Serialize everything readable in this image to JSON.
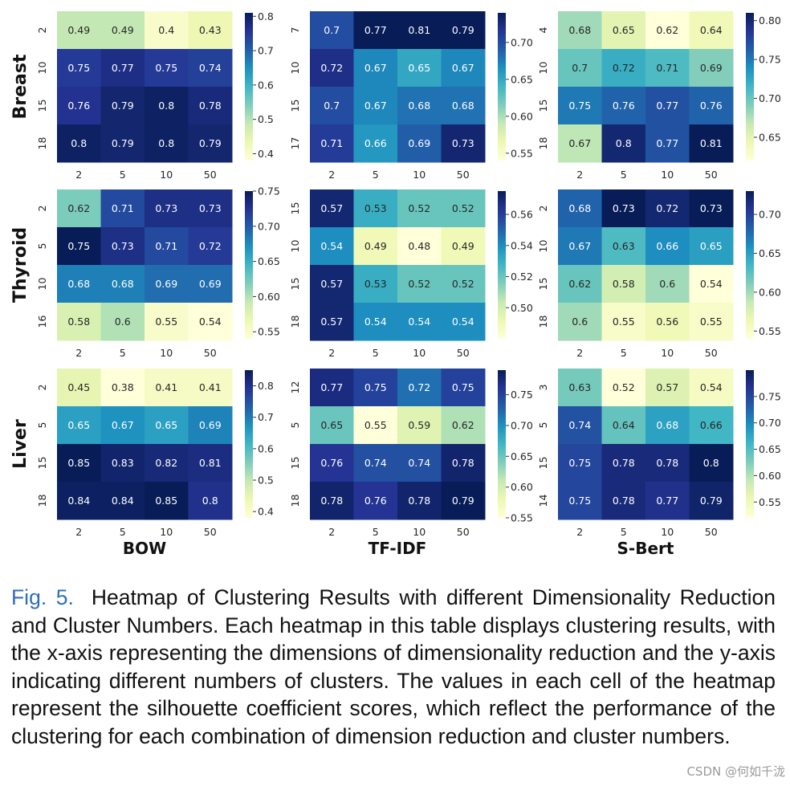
{
  "figure": {
    "row_labels": [
      "Breast",
      "Thyroid",
      "Liver"
    ],
    "column_labels": [
      "BOW",
      "TF-IDF",
      "S-Bert"
    ],
    "colormap": [
      "#ffffd9",
      "#edf8b1",
      "#c7e9b4",
      "#7fcdbb",
      "#41b6c4",
      "#1d91c0",
      "#225ea8",
      "#253494",
      "#081d58"
    ]
  },
  "caption": {
    "label": "Fig. 5.",
    "text": "Heatmap of Clustering Results with different Dimensionality Reduction and Cluster Numbers. Each heatmap in this table displays clustering results, with the x-axis representing the dimensions of dimensionality reduction and the y-axis indicating different numbers of clusters. The values in each cell of the heatmap represent the silhouette coefficient scores, which reflect the performance of the clustering for each combination of dimension reduction and cluster numbers."
  },
  "watermark": "CSDN @何如千泷",
  "chart_data": [
    {
      "type": "heatmap",
      "dataset": "Breast",
      "method": "BOW",
      "x": [
        "2",
        "5",
        "10",
        "50"
      ],
      "y": [
        "2",
        "10",
        "15",
        "18"
      ],
      "values": [
        [
          0.49,
          0.49,
          0.4,
          0.43
        ],
        [
          0.75,
          0.77,
          0.75,
          0.74
        ],
        [
          0.76,
          0.79,
          0.8,
          0.78
        ],
        [
          0.8,
          0.79,
          0.8,
          0.79
        ]
      ],
      "vmin": 0.38,
      "vmax": 0.81,
      "colorbar_ticks": [
        "0.8",
        "0.7",
        "0.6",
        "0.5",
        "0.4"
      ]
    },
    {
      "type": "heatmap",
      "dataset": "Breast",
      "method": "TF-IDF",
      "x": [
        "2",
        "5",
        "10",
        "50"
      ],
      "y": [
        "7",
        "10",
        "15",
        "17"
      ],
      "values": [
        [
          0.7,
          0.77,
          0.81,
          0.79
        ],
        [
          0.72,
          0.67,
          0.65,
          0.67
        ],
        [
          0.7,
          0.67,
          0.68,
          0.68
        ],
        [
          0.71,
          0.66,
          0.69,
          0.73
        ]
      ],
      "vmin": 0.54,
      "vmax": 0.74,
      "colorbar_ticks": [
        "0.70",
        "0.65",
        "0.60",
        "0.55"
      ]
    },
    {
      "type": "heatmap",
      "dataset": "Breast",
      "method": "S-Bert",
      "x": [
        "2",
        "5",
        "10",
        "50"
      ],
      "y": [
        "4",
        "10",
        "15",
        "18"
      ],
      "values": [
        [
          0.68,
          0.65,
          0.62,
          0.64
        ],
        [
          0.7,
          0.72,
          0.71,
          0.69
        ],
        [
          0.75,
          0.76,
          0.77,
          0.76
        ],
        [
          0.67,
          0.8,
          0.77,
          0.81
        ]
      ],
      "vmin": 0.62,
      "vmax": 0.81,
      "colorbar_ticks": [
        "0.80",
        "0.75",
        "0.70",
        "0.65"
      ]
    },
    {
      "type": "heatmap",
      "dataset": "Thyroid",
      "method": "BOW",
      "x": [
        "2",
        "5",
        "10",
        "50"
      ],
      "y": [
        "2",
        "5",
        "10",
        "16"
      ],
      "values": [
        [
          0.62,
          0.71,
          0.73,
          0.73
        ],
        [
          0.75,
          0.73,
          0.71,
          0.72
        ],
        [
          0.68,
          0.68,
          0.69,
          0.69
        ],
        [
          0.58,
          0.6,
          0.55,
          0.54
        ]
      ],
      "vmin": 0.54,
      "vmax": 0.75,
      "colorbar_ticks": [
        "0.75",
        "0.70",
        "0.65",
        "0.60",
        "0.55"
      ]
    },
    {
      "type": "heatmap",
      "dataset": "Thyroid",
      "method": "TF-IDF",
      "x": [
        "2",
        "5",
        "10",
        "50"
      ],
      "y": [
        "15",
        "10",
        "15",
        "18"
      ],
      "values": [
        [
          0.57,
          0.53,
          0.52,
          0.52
        ],
        [
          0.54,
          0.49,
          0.48,
          0.49
        ],
        [
          0.57,
          0.53,
          0.52,
          0.52
        ],
        [
          0.57,
          0.54,
          0.54,
          0.54
        ]
      ],
      "vmin": 0.48,
      "vmax": 0.575,
      "colorbar_ticks": [
        "0.56",
        "0.54",
        "0.52",
        "0.50"
      ]
    },
    {
      "type": "heatmap",
      "dataset": "Thyroid",
      "method": "S-Bert",
      "x": [
        "2",
        "5",
        "10",
        "50"
      ],
      "y": [
        "2",
        "10",
        "15",
        "18"
      ],
      "values": [
        [
          0.68,
          0.73,
          0.72,
          0.73
        ],
        [
          0.67,
          0.63,
          0.66,
          0.65
        ],
        [
          0.62,
          0.58,
          0.6,
          0.54
        ],
        [
          0.6,
          0.55,
          0.56,
          0.55
        ]
      ],
      "vmin": 0.54,
      "vmax": 0.73,
      "colorbar_ticks": [
        "0.70",
        "0.65",
        "0.60",
        "0.55"
      ]
    },
    {
      "type": "heatmap",
      "dataset": "Liver",
      "method": "BOW",
      "x": [
        "2",
        "5",
        "10",
        "50"
      ],
      "y": [
        "2",
        "5",
        "15",
        "18"
      ],
      "values": [
        [
          0.45,
          0.38,
          0.41,
          0.41
        ],
        [
          0.65,
          0.67,
          0.65,
          0.69
        ],
        [
          0.85,
          0.83,
          0.82,
          0.81
        ],
        [
          0.84,
          0.84,
          0.85,
          0.8
        ]
      ],
      "vmin": 0.38,
      "vmax": 0.85,
      "colorbar_ticks": [
        "0.8",
        "0.7",
        "0.6",
        "0.5",
        "0.4"
      ]
    },
    {
      "type": "heatmap",
      "dataset": "Liver",
      "method": "TF-IDF",
      "x": [
        "2",
        "5",
        "10",
        "50"
      ],
      "y": [
        "12",
        "5",
        "15",
        "18"
      ],
      "values": [
        [
          0.77,
          0.75,
          0.72,
          0.75
        ],
        [
          0.65,
          0.55,
          0.59,
          0.62
        ],
        [
          0.76,
          0.74,
          0.74,
          0.78
        ],
        [
          0.78,
          0.76,
          0.78,
          0.79
        ]
      ],
      "vmin": 0.55,
      "vmax": 0.79,
      "colorbar_ticks": [
        "0.75",
        "0.70",
        "0.65",
        "0.60",
        "0.55"
      ]
    },
    {
      "type": "heatmap",
      "dataset": "Liver",
      "method": "S-Bert",
      "x": [
        "2",
        "5",
        "10",
        "50"
      ],
      "y": [
        "3",
        "5",
        "15",
        "14"
      ],
      "values": [
        [
          0.63,
          0.52,
          0.57,
          0.54
        ],
        [
          0.74,
          0.64,
          0.68,
          0.66
        ],
        [
          0.75,
          0.78,
          0.78,
          0.8
        ],
        [
          0.75,
          0.78,
          0.77,
          0.79
        ]
      ],
      "vmin": 0.52,
      "vmax": 0.8,
      "colorbar_ticks": [
        "0.75",
        "0.70",
        "0.65",
        "0.60",
        "0.55"
      ]
    }
  ]
}
